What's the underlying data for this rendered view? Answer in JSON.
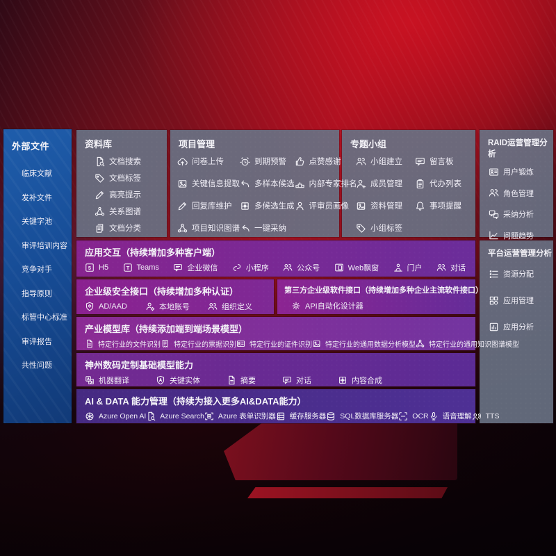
{
  "colors": {
    "background_red": "#a01020",
    "sidebar_blue": "#174d97",
    "panel_gray": "#687183",
    "row_purple": "#87248f",
    "row_indigo": "#462a82"
  },
  "left_sidebar": {
    "title": "外部文件",
    "items": [
      "临床文献",
      "发补文件",
      "关键字池",
      "审评培训内容",
      "竞争对手",
      "指导原则",
      "标管中心标准",
      "审评报告",
      "共性问题"
    ]
  },
  "top_panels": [
    {
      "title": "资料库",
      "items": [
        {
          "label": "文档搜索",
          "icon": "doc-search"
        },
        {
          "label": "文档标签",
          "icon": "tag"
        },
        {
          "label": "高亮提示",
          "icon": "pen"
        },
        {
          "label": "关系图谱",
          "icon": "knowledge-graph"
        },
        {
          "label": "文档分类",
          "icon": "doc-copy"
        }
      ]
    },
    {
      "title": "项目管理",
      "items": [
        {
          "label": "问卷上传",
          "icon": "cloud-upload"
        },
        {
          "label": "到期预警",
          "icon": "alarm"
        },
        {
          "label": "点赞感谢",
          "icon": "thumbs-up"
        },
        {
          "label": "关键信息提取",
          "icon": "image"
        },
        {
          "label": "多样本候选",
          "icon": "reply-arrow"
        },
        {
          "label": "内部专家排名",
          "icon": "podium"
        },
        {
          "label": "回复库维护",
          "icon": "pen"
        },
        {
          "label": "多候选生成",
          "icon": "puzzle"
        },
        {
          "label": "评审员画像",
          "icon": "person"
        },
        {
          "label": "项目知识图谱",
          "icon": "knowledge-graph"
        },
        {
          "label": "一键采纳",
          "icon": "adopt-arrow"
        }
      ]
    },
    {
      "title": "专题小组",
      "items": [
        {
          "label": "小组建立",
          "icon": "people"
        },
        {
          "label": "留言板",
          "icon": "message-board"
        },
        {
          "label": "成员管理",
          "icon": "person-add"
        },
        {
          "label": "代办列表",
          "icon": "clipboard"
        },
        {
          "label": "资料管理",
          "icon": "image"
        },
        {
          "label": "事项提醒",
          "icon": "bell"
        },
        {
          "label": "小组标签",
          "icon": "tag"
        }
      ]
    }
  ],
  "right_panels": [
    {
      "title": "RAID运营管理分析",
      "items": [
        {
          "label": "用户锻炼",
          "icon": "id-card"
        },
        {
          "label": "角色管理",
          "icon": "people"
        },
        {
          "label": "采纳分析",
          "icon": "chat-analysis"
        },
        {
          "label": "问题趋势",
          "icon": "trend-chart"
        }
      ]
    },
    {
      "title": "平台运营管理分析",
      "items": [
        {
          "label": "资源分配",
          "icon": "list"
        },
        {
          "label": "应用管理",
          "icon": "app-grid"
        },
        {
          "label": "应用分析",
          "icon": "chart-doc"
        }
      ]
    }
  ],
  "rows": [
    {
      "title": "应用交互（持续增加多种客户端）",
      "items": [
        {
          "label": "H5",
          "icon": "h5"
        },
        {
          "label": "Teams",
          "icon": "teams"
        },
        {
          "label": "企业微信",
          "icon": "chat"
        },
        {
          "label": "小程序",
          "icon": "mini-program"
        },
        {
          "label": "公众号",
          "icon": "people"
        },
        {
          "label": "Web飘窗",
          "icon": "web-window"
        },
        {
          "label": "门户",
          "icon": "portal-person"
        },
        {
          "label": "对话",
          "icon": "people"
        }
      ]
    },
    {
      "title": "企业级安全接口（持续增加多种认证）",
      "items": [
        {
          "label": "AD/AAD",
          "icon": "shield"
        },
        {
          "label": "本地账号",
          "icon": "person-gear"
        },
        {
          "label": "组织定义",
          "icon": "people"
        }
      ]
    },
    {
      "title": "第三方企业级软件接口（持续增加多种企业主流软件接口）",
      "items": [
        {
          "label": "API自动化设计器",
          "icon": "gear"
        }
      ]
    },
    {
      "title": "产业模型库（持续添加端到端场景模型）",
      "items": [
        {
          "label": "特定行业的文件识别",
          "icon": "doc"
        },
        {
          "label": "特定行业的票据识别",
          "icon": "receipt"
        },
        {
          "label": "特定行业的证件识别",
          "icon": "id-card"
        },
        {
          "label": "特定行业的通用数据分析模型",
          "icon": "image"
        },
        {
          "label": "特定行业的通用知识图谱模型",
          "icon": "knowledge-graph"
        }
      ]
    },
    {
      "title": "神州数码定制基础模型能力",
      "items": [
        {
          "label": "机器翻译",
          "icon": "translate"
        },
        {
          "label": "关键实体",
          "icon": "shield-a"
        },
        {
          "label": "摘要",
          "icon": "doc"
        },
        {
          "label": "对话",
          "icon": "chat"
        },
        {
          "label": "内容合成",
          "icon": "puzzle"
        }
      ]
    },
    {
      "title": "AI & DATA 能力管理（持续为接入更多AI&DATA能力）",
      "items": [
        {
          "label": "Azure Open AI",
          "icon": "openai"
        },
        {
          "label": "Azure Search",
          "icon": "doc-search"
        },
        {
          "label": "Azure 表单识别器",
          "icon": "scan-doc"
        },
        {
          "label": "缓存服务器",
          "icon": "server"
        },
        {
          "label": "SQL数据库服务器",
          "icon": "database"
        },
        {
          "label": "OCR",
          "icon": "ocr-scan"
        },
        {
          "label": "语音理解",
          "icon": "microphone"
        },
        {
          "label": "TTS",
          "icon": "speak"
        }
      ]
    }
  ]
}
